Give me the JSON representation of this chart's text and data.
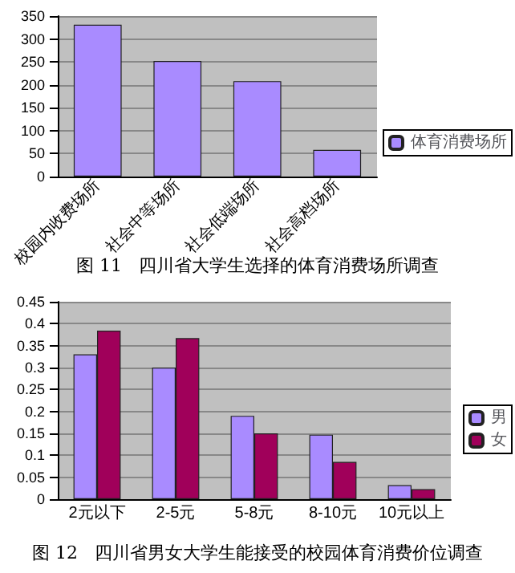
{
  "chart_data": [
    {
      "type": "bar",
      "title": "图 11   四川省大学生选择的体育消费场所调查",
      "categories": [
        "校园内收费场所",
        "社会中等场所",
        "社会低端场所",
        "社会高档场所"
      ],
      "series": [
        {
          "name": "体育消费场所",
          "color": "#a98bff",
          "values": [
            331,
            252,
            208,
            58
          ]
        }
      ],
      "ylim": [
        0,
        350
      ],
      "yticks": [
        0,
        50,
        100,
        150,
        200,
        250,
        300,
        350
      ],
      "grid": "y",
      "legend": "right"
    },
    {
      "type": "bar",
      "title": "图 12   四川省男女大学生能接受的校园体育消费价位调查",
      "categories": [
        "2元以下",
        "2-5元",
        "5-8元",
        "8-10元",
        "10元以上"
      ],
      "series": [
        {
          "name": "男",
          "color": "#a98bff",
          "values": [
            0.33,
            0.3,
            0.19,
            0.147,
            0.032
          ]
        },
        {
          "name": "女",
          "color": "#a0005a",
          "values": [
            0.384,
            0.367,
            0.15,
            0.085,
            0.023
          ]
        }
      ],
      "ylim": [
        0,
        0.45
      ],
      "yticks": [
        0,
        0.05,
        0.1,
        0.15,
        0.2,
        0.25,
        0.3,
        0.35,
        0.4,
        0.45
      ],
      "grid": "y",
      "legend": "right"
    }
  ]
}
